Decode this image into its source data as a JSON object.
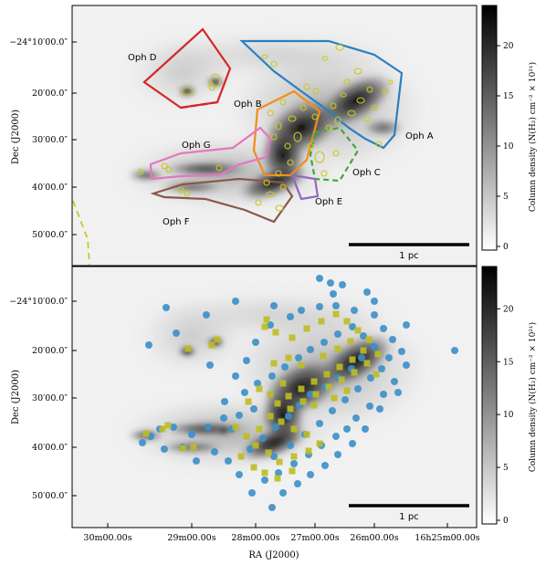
{
  "figure": {
    "xlabel": "RA (J2000)",
    "ylabel": "Dec (J2000)",
    "x_ticks": [
      "30m00.00s",
      "29m00.00s",
      "28m00.00s",
      "27m00.00s",
      "26m00.00s",
      "16h25m00.00s"
    ],
    "y_ticks": [
      "−24°10′00.0″",
      "20′00.0″",
      "30′00.0″",
      "40′00.0″",
      "50′00.0″"
    ],
    "colorbar_label": "Column density (N(H₂) cm⁻² × 10²¹)",
    "colorbar_ticks": [
      "0",
      "5",
      "10",
      "15",
      "20"
    ],
    "scalebar_label": "1 pc",
    "colormap": [
      "#ffffff",
      "#000000"
    ],
    "colors": {
      "oph_a": "#2a7fc1",
      "oph_b": "#f28c1c",
      "oph_c": "#3fa83b",
      "oph_d": "#d62728",
      "oph_e": "#9467bd",
      "oph_f": "#8c564b",
      "oph_g": "#e377c2",
      "cores": "#c8c81e",
      "markers_circle": "#3b8fc9",
      "markers_square": "#bcbd22"
    }
  },
  "top_panel": {
    "regions": {
      "oph_a": "Oph A",
      "oph_b": "Oph B",
      "oph_c": "Oph C",
      "oph_d": "Oph D",
      "oph_e": "Oph E",
      "oph_f": "Oph F",
      "oph_g": "Oph G"
    }
  },
  "bottom_panel": {
    "marker_types": [
      "circle",
      "square"
    ]
  }
}
